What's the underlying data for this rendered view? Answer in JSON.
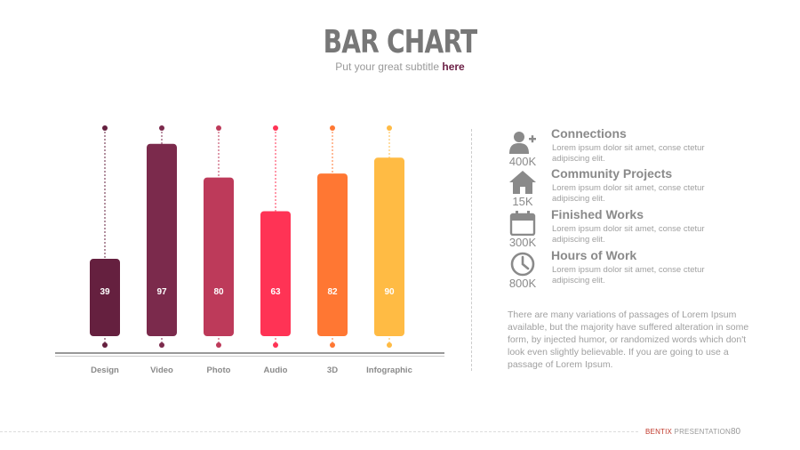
{
  "header": {
    "title": "BAR CHART",
    "subtitle_prefix": "Put your great subtitle ",
    "subtitle_highlight": "here"
  },
  "chart_data": {
    "type": "bar",
    "title": "BAR CHART",
    "categories": [
      "Design",
      "Video",
      "Photo",
      "Audio",
      "3D",
      "Infographic"
    ],
    "values": [
      39,
      97,
      80,
      63,
      82,
      90
    ],
    "colors": [
      "#65203f",
      "#7b2a4c",
      "#bd3a5a",
      "#ff3355",
      "#ff7733",
      "#ffbb44"
    ],
    "data_labels": [
      "39",
      "97",
      "80",
      "63",
      "82",
      "90"
    ],
    "xlabel": "",
    "ylabel": "",
    "ylim": [
      0,
      100
    ],
    "grid": false
  },
  "stats": [
    {
      "icon": "add-user-icon",
      "value": "400K",
      "title": "Connections",
      "desc": "Lorem ipsum dolor sit amet, conse ctetur adipiscing elit."
    },
    {
      "icon": "home-icon",
      "value": "15K",
      "title": "Community Projects",
      "desc": "Lorem ipsum dolor sit amet, conse ctetur adipiscing elit."
    },
    {
      "icon": "calendar-icon",
      "value": "300K",
      "title": "Finished Works",
      "desc": "Lorem ipsum dolor sit amet, conse ctetur adipiscing elit."
    },
    {
      "icon": "clock-icon",
      "value": "800K",
      "title": "Hours of Work",
      "desc": "Lorem ipsum dolor sit amet, conse ctetur adipiscing elit."
    }
  ],
  "paragraph": "There are many variations of passages of Lorem Ipsum available, but the majority have suffered alteration in some form, by injected humor, or randomized words which don't look even slightly believable. If you are going to use a passage of Lorem Ipsum.",
  "footer": {
    "brand": "BENTIX",
    "presentation": "PRESENTATION",
    "page_number": "80"
  },
  "colors": {
    "text_gray": "#8a8a8a",
    "accent": "#6b1f45"
  }
}
